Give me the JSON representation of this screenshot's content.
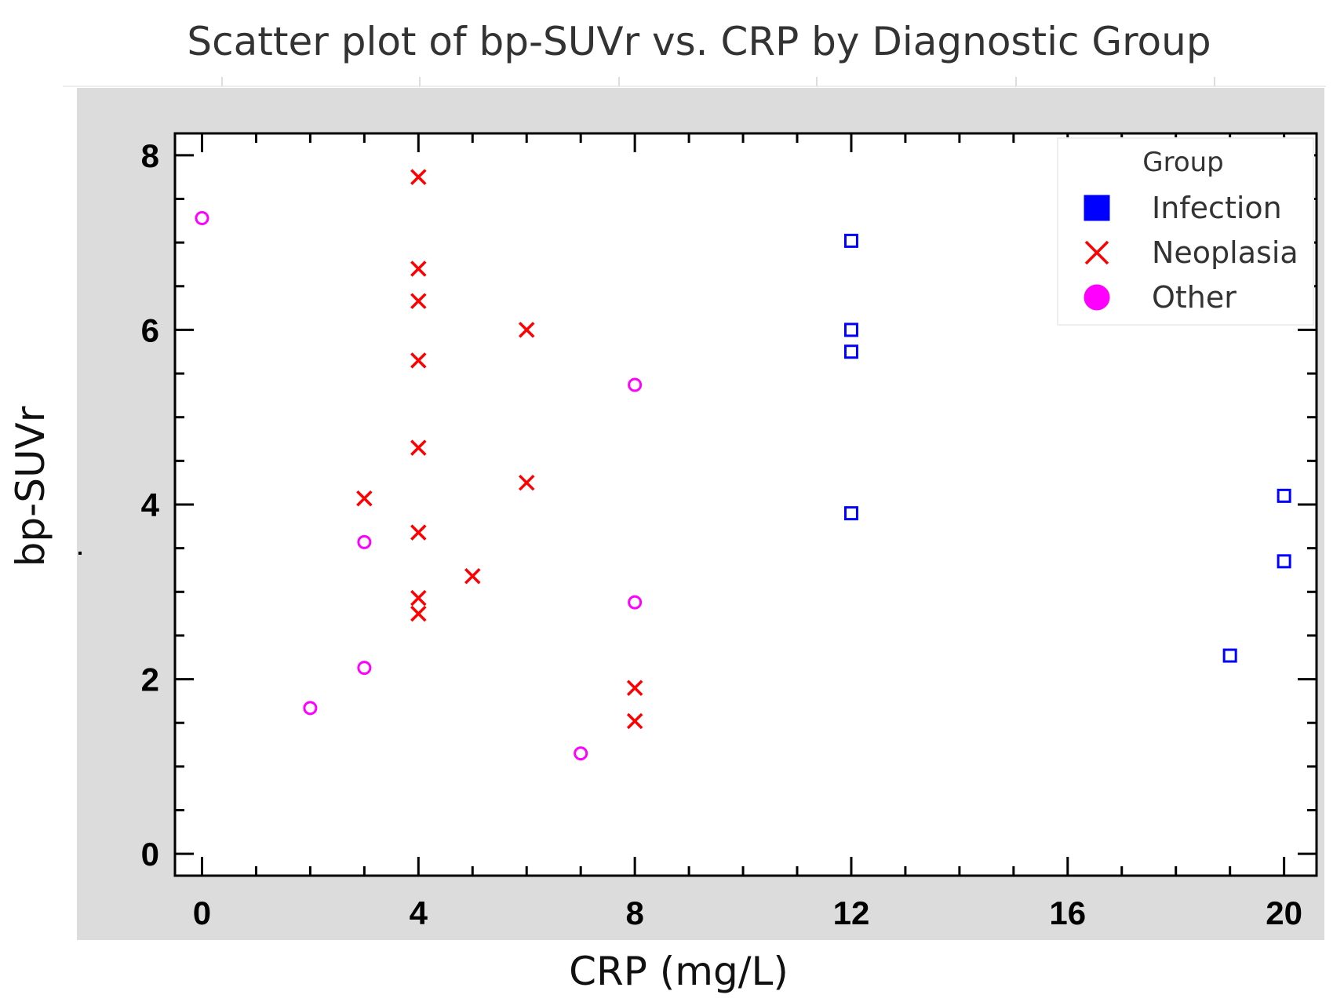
{
  "chart_data": {
    "type": "scatter",
    "title": "Scatter plot of bp-SUVr vs. CRP by Diagnostic Group",
    "xlabel": "CRP (mg/L)",
    "ylabel": "bp-SUVr",
    "xlim": [
      -0.5,
      20.6
    ],
    "ylim": [
      -0.25,
      8.25
    ],
    "xticks": [
      0,
      4,
      8,
      12,
      16,
      20
    ],
    "yticks": [
      0,
      2,
      4,
      6,
      8
    ],
    "grid": false,
    "legend_position": "top-right",
    "legend_title": "Group",
    "series": [
      {
        "name": "Infection",
        "marker": "square",
        "color": "#0000ff",
        "points": [
          {
            "x": 12,
            "y": 7.02
          },
          {
            "x": 12,
            "y": 6.0
          },
          {
            "x": 12,
            "y": 5.75
          },
          {
            "x": 12,
            "y": 3.9
          },
          {
            "x": 20,
            "y": 4.1
          },
          {
            "x": 20,
            "y": 3.35
          },
          {
            "x": 19,
            "y": 2.27
          }
        ]
      },
      {
        "name": "Neoplasia",
        "marker": "x",
        "color": "#ff0000",
        "points": [
          {
            "x": 4,
            "y": 7.75
          },
          {
            "x": 4,
            "y": 6.7
          },
          {
            "x": 4,
            "y": 6.33
          },
          {
            "x": 4,
            "y": 5.65
          },
          {
            "x": 4,
            "y": 4.65
          },
          {
            "x": 4,
            "y": 3.68
          },
          {
            "x": 4,
            "y": 2.93
          },
          {
            "x": 4,
            "y": 2.75
          },
          {
            "x": 3,
            "y": 4.07
          },
          {
            "x": 6,
            "y": 6.0
          },
          {
            "x": 6,
            "y": 4.25
          },
          {
            "x": 5,
            "y": 3.18
          },
          {
            "x": 8,
            "y": 1.9
          },
          {
            "x": 8,
            "y": 1.52
          }
        ]
      },
      {
        "name": "Other",
        "marker": "circle",
        "color": "#ff00ff",
        "points": [
          {
            "x": 0,
            "y": 7.28
          },
          {
            "x": 3,
            "y": 3.57
          },
          {
            "x": 3,
            "y": 2.13
          },
          {
            "x": 2,
            "y": 1.67
          },
          {
            "x": 7,
            "y": 1.15
          },
          {
            "x": 8,
            "y": 5.37
          },
          {
            "x": 8,
            "y": 2.88
          }
        ]
      }
    ]
  }
}
